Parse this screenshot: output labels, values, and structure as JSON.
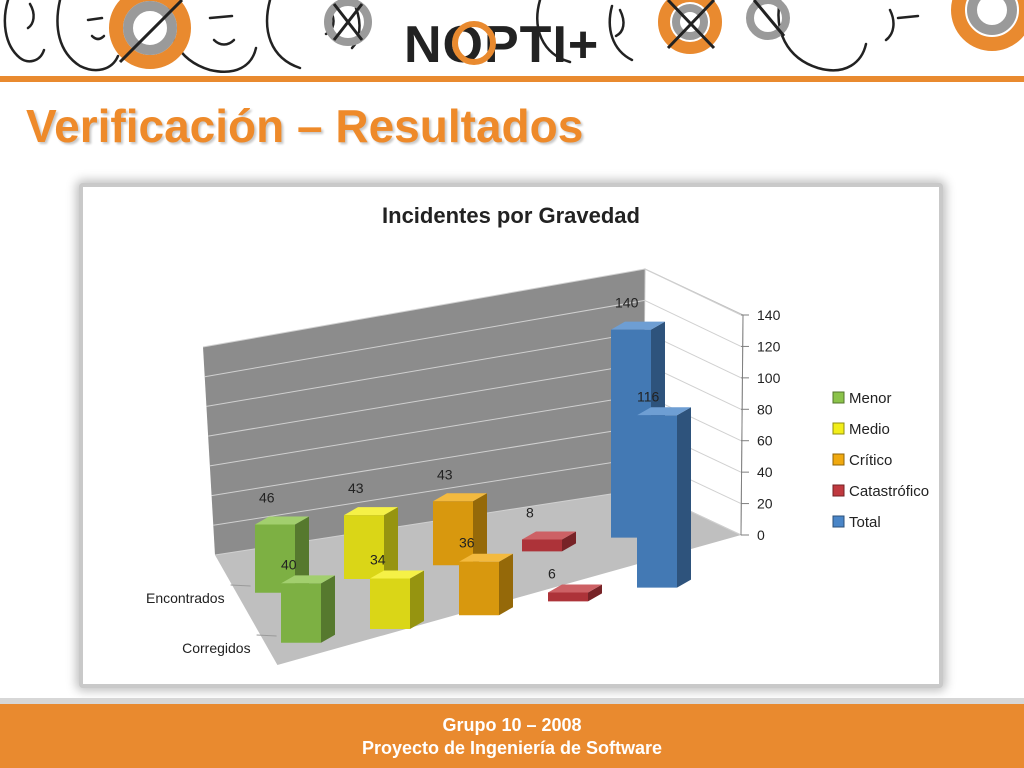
{
  "banner": {
    "logo_text": "NOPTI+",
    "colors": {
      "orange": "#e98a2f",
      "ink": "#222222",
      "grey": "#9a9a9a"
    }
  },
  "slide": {
    "title": "Verificación – Resultados"
  },
  "chart_data": {
    "type": "bar",
    "title": "Incidentes por Gravedad",
    "categories": [
      "Encontrados",
      "Corregidos"
    ],
    "series": [
      {
        "name": "Menor",
        "values": [
          46,
          40
        ],
        "color": "#8bc34a"
      },
      {
        "name": "Medio",
        "values": [
          43,
          34
        ],
        "color": "#f2ee19"
      },
      {
        "name": "Crítico",
        "values": [
          43,
          36
        ],
        "color": "#f0a90f"
      },
      {
        "name": "Catastrófico",
        "values": [
          8,
          6
        ],
        "color": "#c0393f"
      },
      {
        "name": "Total",
        "values": [
          140,
          116
        ],
        "color": "#4a86c8"
      }
    ],
    "yticks": [
      "0",
      "20",
      "40",
      "60",
      "80",
      "100",
      "120",
      "140"
    ],
    "ylim": [
      0,
      140
    ],
    "legend_position": "right",
    "grid": true
  },
  "footer": {
    "line1": "Grupo 10 – 2008",
    "line2": "Proyecto de Ingeniería de Software"
  }
}
